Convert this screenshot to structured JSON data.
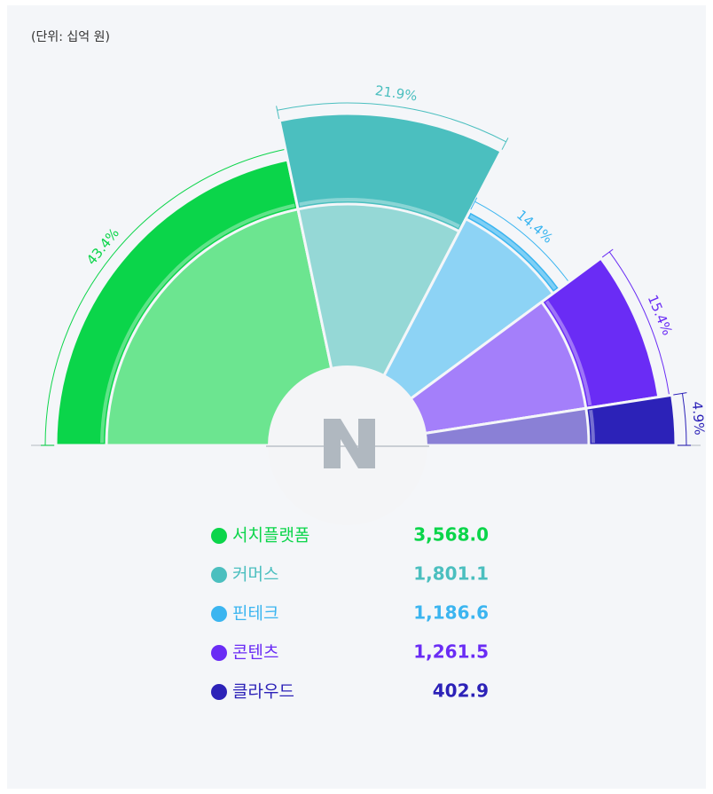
{
  "chart_data": {
    "type": "pie",
    "subtitle": "(단위: 십억 원)",
    "categories": [
      "서치플랫폼",
      "커머스",
      "핀테크",
      "콘텐츠",
      "클라우드"
    ],
    "values": [
      3568.0,
      1801.1,
      1186.6,
      1261.5,
      402.9
    ],
    "value_labels": [
      "3,568.0",
      "1,801.1",
      "1,186.6",
      "1,261.5",
      "402.9"
    ],
    "shares": [
      43.4,
      21.9,
      14.4,
      15.4,
      4.9
    ],
    "share_labels": [
      "43.4%",
      "21.9%",
      "14.4%",
      "15.4%",
      "4.9%"
    ],
    "colors": [
      "#0bd54a",
      "#4bbfbf",
      "#3bb5f0",
      "#6a2cf5",
      "#2c22b8"
    ],
    "light_colors": [
      "#6ce590",
      "#95d8d6",
      "#8dd3f5",
      "#a47ffa",
      "#8a80d6"
    ]
  }
}
